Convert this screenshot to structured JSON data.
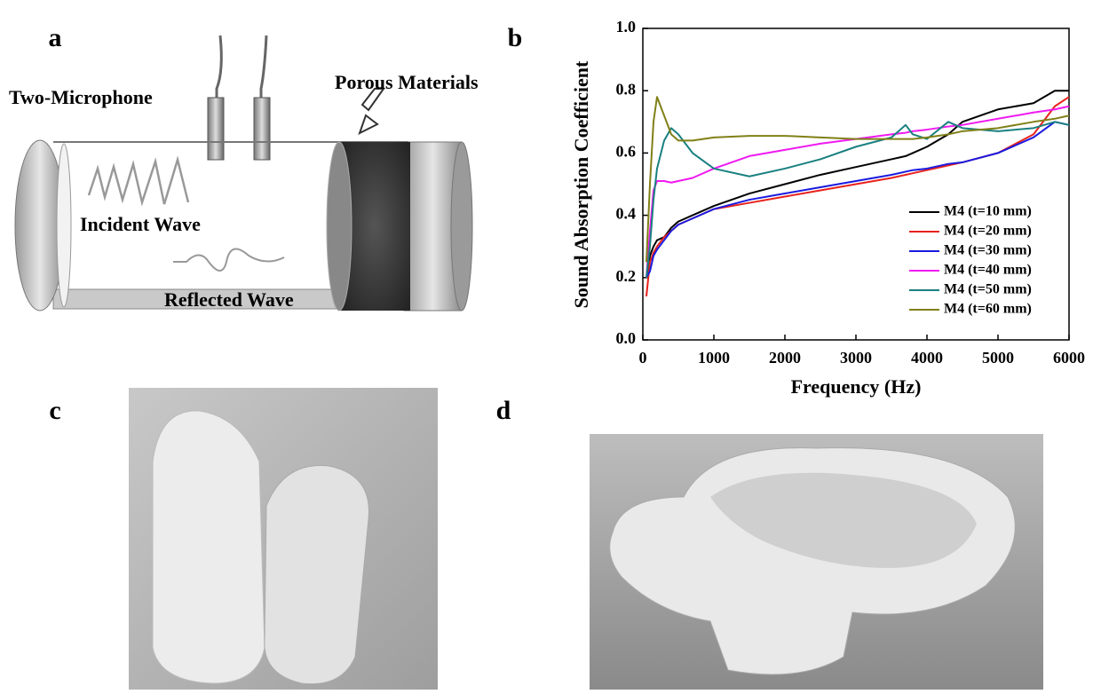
{
  "panel_labels": [
    "a",
    "b",
    "c",
    "d"
  ],
  "diagram": {
    "microphone_label": "Two-Microphone",
    "material_label": "Porous Materials",
    "incident_label": "Incident Wave",
    "reflected_label": "Reflected Wave"
  },
  "chart_data": {
    "type": "line",
    "xlabel": "Frequency (Hz)",
    "ylabel": "Sound Absorption Coefficient",
    "x": [
      50,
      100,
      150,
      200,
      300,
      400,
      500,
      700,
      1000,
      1500,
      2000,
      2500,
      3000,
      3500,
      3700,
      3800,
      4000,
      4300,
      4500,
      5000,
      5500,
      5800,
      6000
    ],
    "series": [
      {
        "name": "M4 (t=10 mm)",
        "color": "#000000",
        "values": [
          0.2,
          0.27,
          0.3,
          0.32,
          0.33,
          0.36,
          0.38,
          0.4,
          0.43,
          0.47,
          0.5,
          0.53,
          0.555,
          0.58,
          0.59,
          0.6,
          0.62,
          0.66,
          0.7,
          0.74,
          0.76,
          0.8,
          0.8
        ]
      },
      {
        "name": "M4 (t=20 mm)",
        "color": "#e8221c",
        "values": [
          0.14,
          0.25,
          0.28,
          0.3,
          0.33,
          0.35,
          0.37,
          0.39,
          0.42,
          0.44,
          0.46,
          0.48,
          0.5,
          0.52,
          0.53,
          0.535,
          0.545,
          0.56,
          0.57,
          0.6,
          0.66,
          0.75,
          0.78
        ]
      },
      {
        "name": "M4 (t=30 mm)",
        "color": "#1a1ae0",
        "values": [
          0.2,
          0.22,
          0.27,
          0.29,
          0.32,
          0.35,
          0.37,
          0.39,
          0.42,
          0.45,
          0.47,
          0.49,
          0.51,
          0.53,
          0.54,
          0.545,
          0.55,
          0.565,
          0.57,
          0.6,
          0.65,
          0.7,
          0.69
        ]
      },
      {
        "name": "M4 (t=40 mm)",
        "color": "#f01af0",
        "values": [
          0.2,
          0.35,
          0.48,
          0.51,
          0.51,
          0.505,
          0.51,
          0.52,
          0.55,
          0.59,
          0.61,
          0.63,
          0.645,
          0.66,
          0.665,
          0.67,
          0.675,
          0.685,
          0.69,
          0.71,
          0.73,
          0.74,
          0.75
        ]
      },
      {
        "name": "M4 (t=50 mm)",
        "color": "#1a8080",
        "values": [
          0.2,
          0.3,
          0.45,
          0.55,
          0.64,
          0.68,
          0.66,
          0.6,
          0.55,
          0.525,
          0.55,
          0.58,
          0.62,
          0.65,
          0.69,
          0.66,
          0.645,
          0.7,
          0.68,
          0.67,
          0.68,
          0.7,
          0.69
        ]
      },
      {
        "name": "M4 (t=60 mm)",
        "color": "#808018",
        "values": [
          0.25,
          0.5,
          0.7,
          0.78,
          0.72,
          0.66,
          0.64,
          0.64,
          0.65,
          0.655,
          0.655,
          0.65,
          0.645,
          0.645,
          0.645,
          0.645,
          0.65,
          0.66,
          0.67,
          0.68,
          0.7,
          0.71,
          0.72
        ]
      }
    ],
    "xlim": [
      0,
      6000
    ],
    "xticks": [
      0,
      1000,
      2000,
      3000,
      4000,
      5000,
      6000
    ],
    "ylim": [
      0,
      1
    ],
    "yticks": [
      {
        "value": 0,
        "label": "0.0"
      },
      0.2,
      0.4,
      0.6,
      0.8,
      {
        "value": 1,
        "label": "1.0"
      }
    ],
    "legend": "lower right"
  }
}
